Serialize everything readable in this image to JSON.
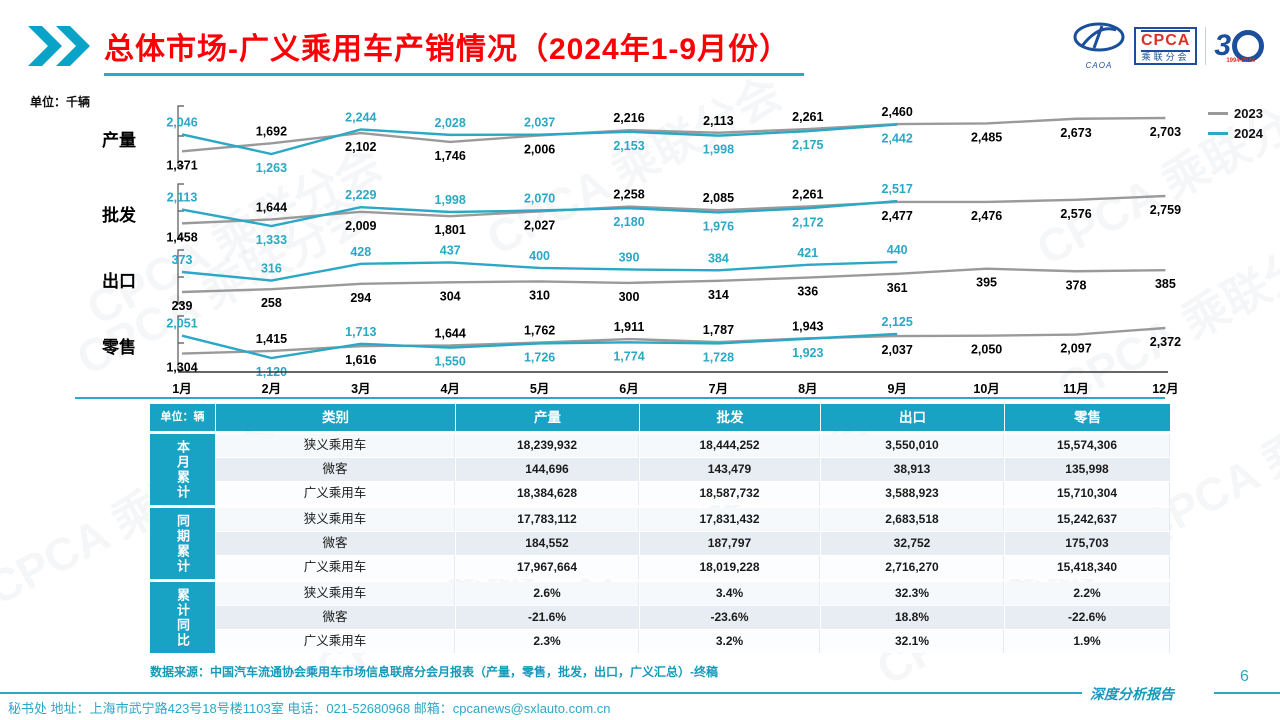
{
  "header": {
    "title": "总体市场-广义乘用车产销情况（2024年1-9月份）",
    "logo": {
      "caoa": "CAOA",
      "cpca": "CPCA",
      "cpca_sub": "乘联分会",
      "anniversary_3": "3",
      "anniversary_years": "1994-2024"
    }
  },
  "unit_label": "单位：千辆",
  "watermark": "CPCA 乘联分会",
  "months": [
    "1月",
    "2月",
    "3月",
    "4月",
    "5月",
    "6月",
    "7月",
    "8月",
    "9月",
    "10月",
    "11月",
    "12月"
  ],
  "chart_data": [
    {
      "type": "line",
      "title": "产量",
      "categories": [
        "1月",
        "2月",
        "3月",
        "4月",
        "5月",
        "6月",
        "7月",
        "8月",
        "9月",
        "10月",
        "11月",
        "12月"
      ],
      "series": [
        {
          "name": "2023",
          "values": [
            1371,
            1692,
            2102,
            1746,
            2006,
            2216,
            2113,
            2261,
            2460,
            2485,
            2673,
            2703
          ]
        },
        {
          "name": "2024",
          "values": [
            2046,
            1263,
            2244,
            2028,
            2037,
            2153,
            1998,
            2175,
            2442
          ]
        }
      ],
      "legend_position": "right",
      "grid": false
    },
    {
      "type": "line",
      "title": "批发",
      "categories": [
        "1月",
        "2月",
        "3月",
        "4月",
        "5月",
        "6月",
        "7月",
        "8月",
        "9月",
        "10月",
        "11月",
        "12月"
      ],
      "series": [
        {
          "name": "2023",
          "values": [
            1458,
            1644,
            2009,
            1801,
            2027,
            2258,
            2085,
            2261,
            2477,
            2476,
            2576,
            2759
          ]
        },
        {
          "name": "2024",
          "values": [
            2113,
            1333,
            2229,
            1998,
            2070,
            2180,
            1976,
            2172,
            2517
          ]
        }
      ],
      "grid": false
    },
    {
      "type": "line",
      "title": "出口",
      "categories": [
        "1月",
        "2月",
        "3月",
        "4月",
        "5月",
        "6月",
        "7月",
        "8月",
        "9月",
        "10月",
        "11月",
        "12月"
      ],
      "series": [
        {
          "name": "2023",
          "values": [
            239,
            258,
            294,
            304,
            310,
            300,
            314,
            336,
            361,
            395,
            378,
            385
          ]
        },
        {
          "name": "2024",
          "values": [
            373,
            316,
            428,
            437,
            400,
            390,
            384,
            421,
            440
          ]
        }
      ],
      "grid": false
    },
    {
      "type": "line",
      "title": "零售",
      "categories": [
        "1月",
        "2月",
        "3月",
        "4月",
        "5月",
        "6月",
        "7月",
        "8月",
        "9月",
        "10月",
        "11月",
        "12月"
      ],
      "series": [
        {
          "name": "2023",
          "values": [
            1304,
            1415,
            1616,
            1644,
            1762,
            1911,
            1787,
            1943,
            2037,
            2050,
            2097,
            2372
          ]
        },
        {
          "name": "2024",
          "values": [
            2051,
            1120,
            1713,
            1550,
            1726,
            1774,
            1728,
            1923,
            2125
          ]
        }
      ],
      "grid": false
    }
  ],
  "table": {
    "unit": "单位：辆",
    "columns": [
      "类别",
      "产量",
      "批发",
      "出口",
      "零售"
    ],
    "sections": [
      {
        "label": "本月累计",
        "rows": [
          [
            "狭义乘用车",
            "18,239,932",
            "18,444,252",
            "3,550,010",
            "15,574,306"
          ],
          [
            "微客",
            "144,696",
            "143,479",
            "38,913",
            "135,998"
          ],
          [
            "广义乘用车",
            "18,384,628",
            "18,587,732",
            "3,588,923",
            "15,710,304"
          ]
        ]
      },
      {
        "label": "同期累计",
        "rows": [
          [
            "狭义乘用车",
            "17,783,112",
            "17,831,432",
            "2,683,518",
            "15,242,637"
          ],
          [
            "微客",
            "184,552",
            "187,797",
            "32,752",
            "175,703"
          ],
          [
            "广义乘用车",
            "17,967,664",
            "18,019,228",
            "2,716,270",
            "15,418,340"
          ]
        ]
      },
      {
        "label": "累计同比",
        "rows": [
          [
            "狭义乘用车",
            "2.6%",
            "3.4%",
            "32.3%",
            "2.2%"
          ],
          [
            "微客",
            "-21.6%",
            "-23.6%",
            "18.8%",
            "-22.6%"
          ],
          [
            "广义乘用车",
            "2.3%",
            "3.2%",
            "32.1%",
            "1.9%"
          ]
        ]
      }
    ]
  },
  "footer": {
    "source": "数据来源：中国汽车流通协会乘用车市场信息联席分会月报表（产量，零售，批发，出口，广义汇总）-终稿",
    "page": "6",
    "report_label": "深度分析报告",
    "contact": "秘书处  地址：上海市武宁路423号18号楼1103室 电话：021-52680968  邮箱：cpcanews@sxlauto.com.cn"
  },
  "colors": {
    "accent": "#18a2c3",
    "line_2023": "#9a9a9a",
    "line_2024": "#2aa8c6",
    "label_2023": "#000000",
    "label_2024": "#2aa8c6",
    "title_red": "#fb0005"
  }
}
